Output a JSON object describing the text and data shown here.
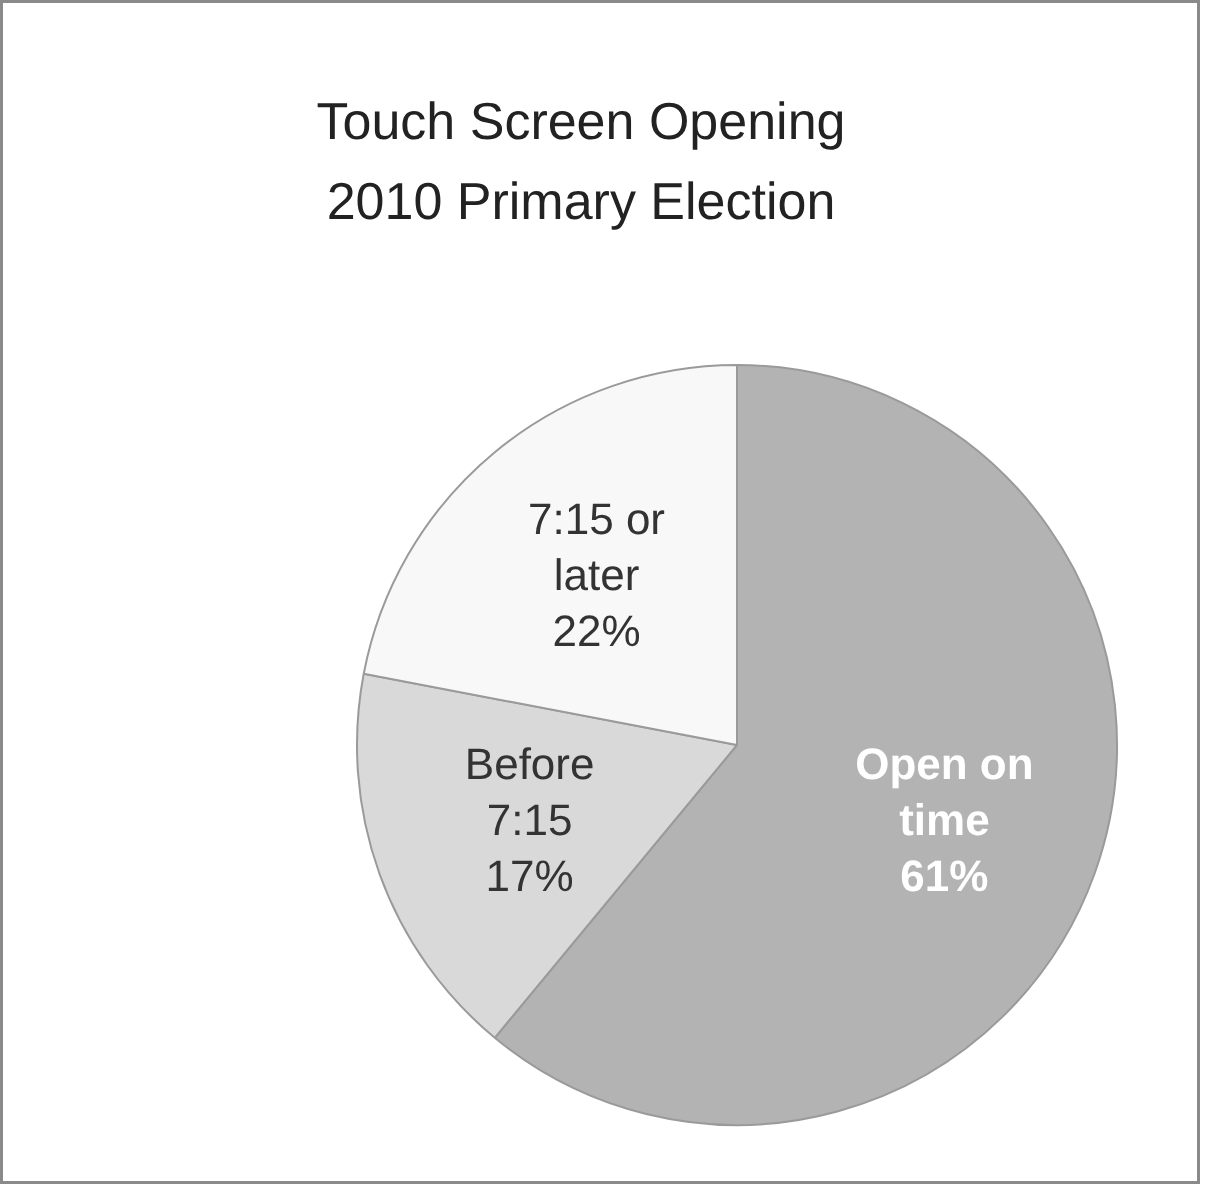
{
  "chart_data": {
    "type": "pie",
    "title": "Touch Screen Opening\n2010 Primary Election",
    "categories": [
      "Open on time",
      "Before 7:15",
      "7:15 or later"
    ],
    "values": [
      61,
      17,
      22
    ],
    "value_labels": [
      "61%",
      "17%",
      "22%"
    ],
    "colors": [
      "#b3b3b3",
      "#d9d9d9",
      "#f8f8f8"
    ],
    "legend": false
  }
}
